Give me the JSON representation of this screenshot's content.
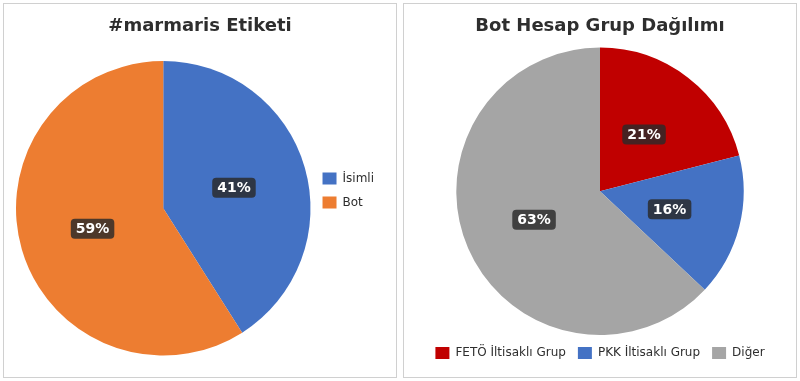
{
  "chart_data": [
    {
      "type": "pie",
      "title": "#marmaris Etiketi",
      "categories": [
        "İsimli",
        "Bot"
      ],
      "values": [
        41,
        59
      ],
      "value_labels": [
        "41%",
        "59%"
      ],
      "colors": [
        "#4472C4",
        "#ED7D31"
      ],
      "data_labels": true,
      "legend": "right"
    },
    {
      "type": "pie",
      "title": "Bot Hesap Grup Dağılımı",
      "categories": [
        "FETÖ İltisaklı Grup",
        "PKK İltisaklı Grup",
        "Diğer"
      ],
      "values": [
        21,
        16,
        63
      ],
      "value_labels": [
        "21%",
        "16%",
        "63%"
      ],
      "colors": [
        "#C00000",
        "#4472C4",
        "#A5A5A5"
      ],
      "data_labels": true,
      "legend": "bottom"
    }
  ]
}
